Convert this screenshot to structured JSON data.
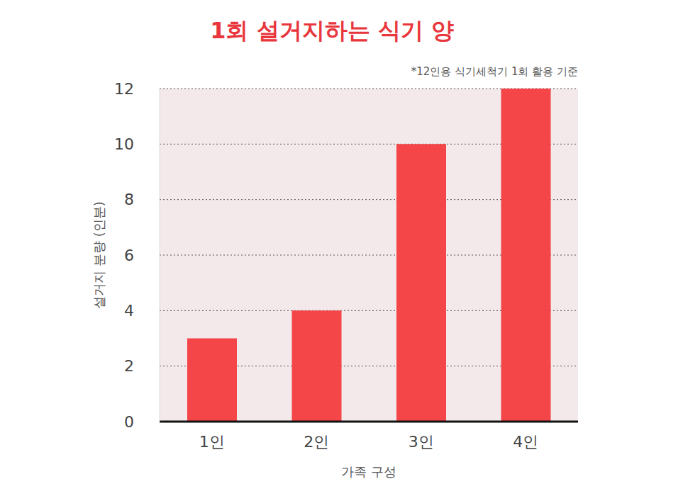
{
  "chart_data": {
    "type": "bar",
    "title": "1회 설거지하는 식기 양",
    "subtitle": "*12인용 식기세척기 1회 활용 기준",
    "x_label": "가족 구성",
    "y_label": "설거지 분량 (인분)",
    "categories": [
      "1인",
      "2인",
      "3인",
      "4인"
    ],
    "values": [
      3,
      4,
      10,
      12
    ],
    "color": "#f44548",
    "ylim": [
      0,
      12
    ],
    "yticks": [
      0,
      2,
      4,
      6,
      8,
      10,
      12
    ],
    "grid": true
  }
}
